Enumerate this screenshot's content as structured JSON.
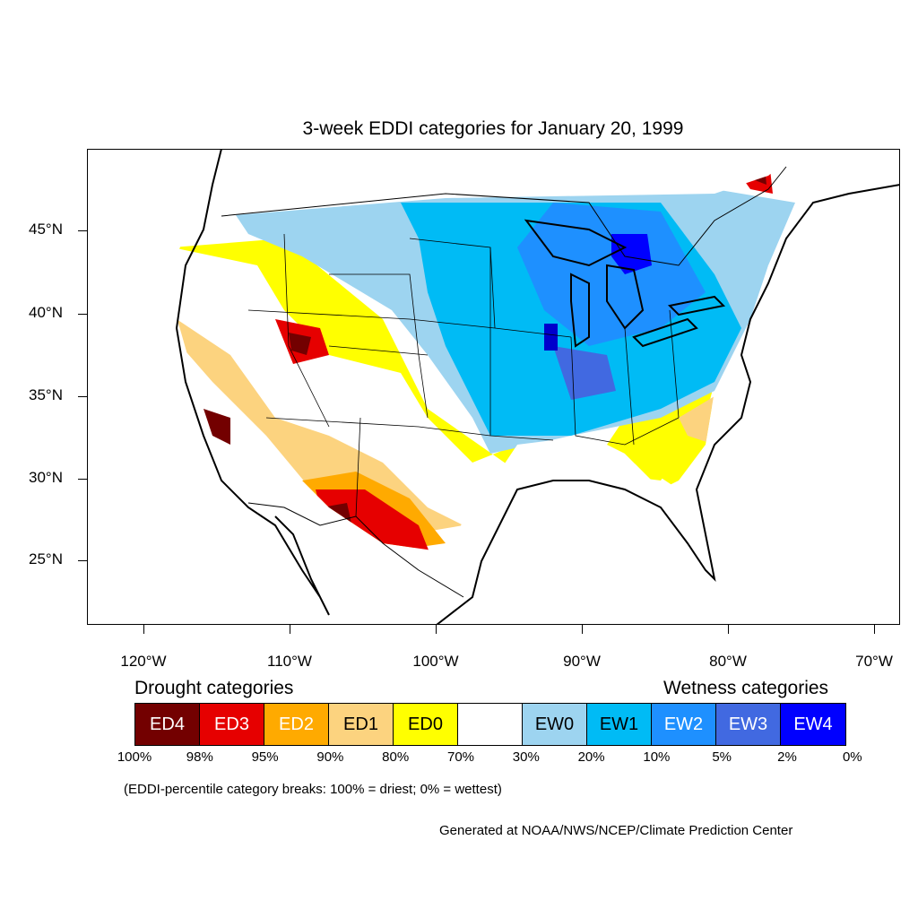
{
  "title": "3-week EDDI categories for January 20, 1999",
  "lat_labels": [
    "45°N",
    "40°N",
    "35°N",
    "30°N",
    "25°N"
  ],
  "lon_labels": [
    "120°W",
    "110°W",
    "100°W",
    "90°W",
    "80°W",
    "70°W"
  ],
  "legend": {
    "drought_heading": "Drought categories",
    "wetness_heading": "Wetness categories",
    "categories": [
      {
        "label": "ED4",
        "color": "#730000",
        "text_color": "#ffffff"
      },
      {
        "label": "ED3",
        "color": "#e60000",
        "text_color": "#ffffff"
      },
      {
        "label": "ED2",
        "color": "#ffaa00",
        "text_color": "#ffffff"
      },
      {
        "label": "ED1",
        "color": "#fcd37f",
        "text_color": "#000000"
      },
      {
        "label": "ED0",
        "color": "#ffff00",
        "text_color": "#000000"
      },
      {
        "label": "",
        "color": "#ffffff",
        "text_color": "#000000"
      },
      {
        "label": "EW0",
        "color": "#9dd4f0",
        "text_color": "#000000"
      },
      {
        "label": "EW1",
        "color": "#00bbf5",
        "text_color": "#000000"
      },
      {
        "label": "EW2",
        "color": "#1e90ff",
        "text_color": "#ffffff"
      },
      {
        "label": "EW3",
        "color": "#4169e1",
        "text_color": "#ffffff"
      },
      {
        "label": "EW4",
        "color": "#0000ff",
        "text_color": "#ffffff"
      }
    ],
    "breaks": [
      "100%",
      "98%",
      "95%",
      "90%",
      "80%",
      "70%",
      "30%",
      "20%",
      "10%",
      "5%",
      "2%",
      "0%"
    ]
  },
  "note": "(EDDI-percentile category breaks: 100% = driest; 0% = wettest)",
  "credit": "Generated at NOAA/NWS/NCEP/Climate Prediction Center"
}
